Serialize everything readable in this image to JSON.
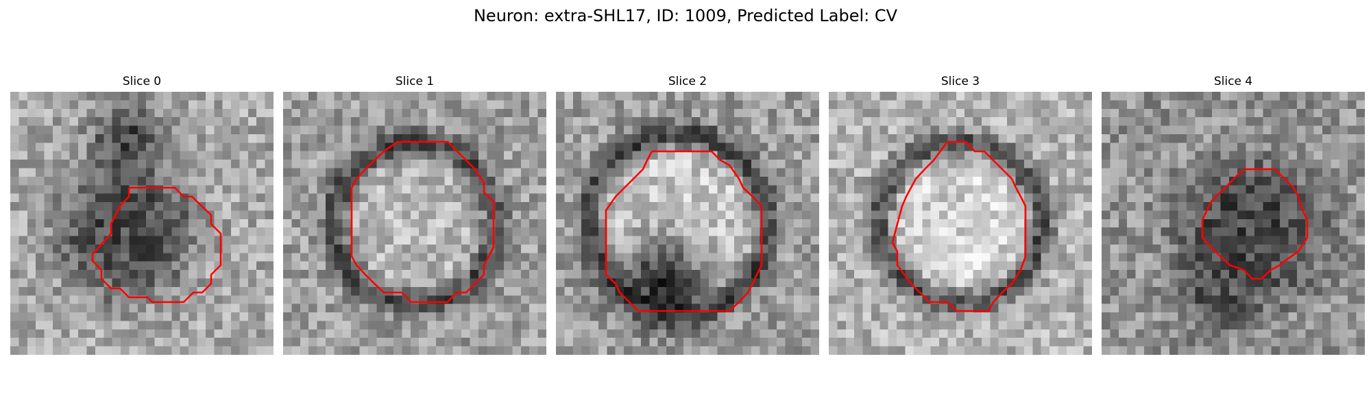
{
  "figure": {
    "title": "Neuron: extra-SHL17, ID: 1009, Predicted Label: CV"
  },
  "colors": {
    "contour": "#ff0000"
  },
  "panels": [
    {
      "title": "Slice 0"
    },
    {
      "title": "Slice 1"
    },
    {
      "title": "Slice 2"
    },
    {
      "title": "Slice 3"
    },
    {
      "title": "Slice 4"
    }
  ]
}
